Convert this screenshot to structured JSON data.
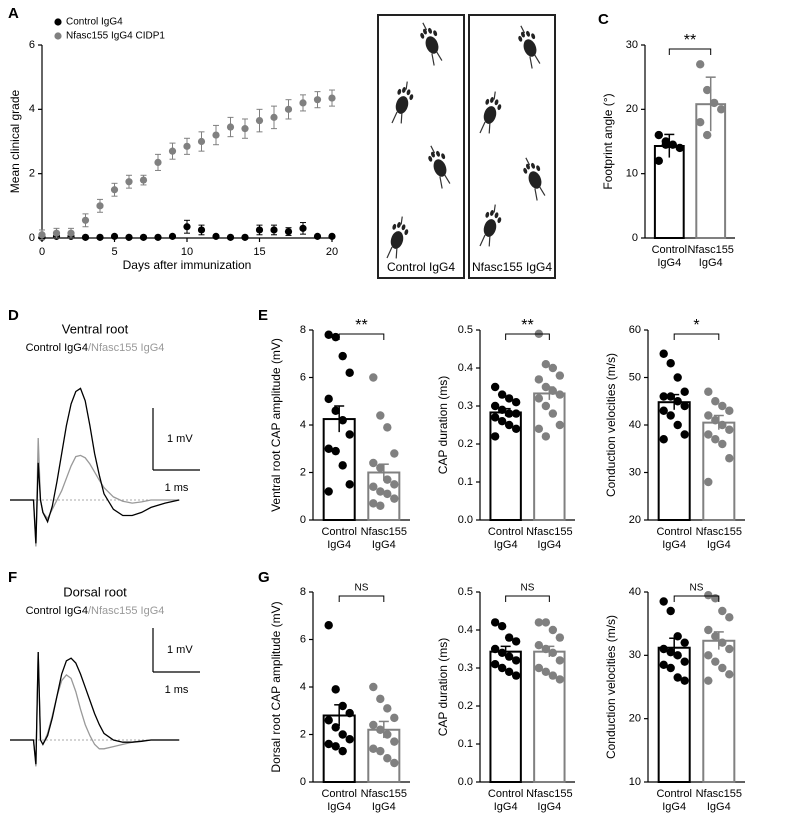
{
  "chart_data": [
    {
      "panel": "A",
      "type": "errorbar",
      "xlabel": "Days after immunization",
      "ylabel": "Mean clinical grade",
      "x": [
        0,
        1,
        2,
        3,
        4,
        5,
        6,
        7,
        8,
        9,
        10,
        11,
        12,
        13,
        14,
        15,
        16,
        17,
        18,
        19,
        20
      ],
      "series": [
        {
          "name": "Control IgG4",
          "color": "#000000",
          "values": [
            0.02,
            0.05,
            0.05,
            0.02,
            0.02,
            0.05,
            0.02,
            0.02,
            0.02,
            0.05,
            0.35,
            0.25,
            0.05,
            0.02,
            0.02,
            0.25,
            0.25,
            0.2,
            0.3,
            0.05,
            0.05
          ],
          "errors": [
            0,
            0.05,
            0.05,
            0,
            0,
            0.05,
            0,
            0,
            0,
            0.05,
            0.2,
            0.15,
            0.05,
            0,
            0,
            0.15,
            0.15,
            0.12,
            0.18,
            0.05,
            0.05
          ]
        },
        {
          "name": "Nfasc155 IgG4 CIDP1",
          "color": "#808080",
          "values": [
            0.1,
            0.15,
            0.15,
            0.55,
            1.0,
            1.5,
            1.75,
            1.8,
            2.35,
            2.7,
            2.85,
            3.0,
            3.2,
            3.45,
            3.4,
            3.65,
            3.75,
            4.0,
            4.2,
            4.3,
            4.35
          ],
          "errors": [
            0.15,
            0.15,
            0.15,
            0.2,
            0.2,
            0.2,
            0.2,
            0.15,
            0.25,
            0.25,
            0.25,
            0.3,
            0.3,
            0.3,
            0.3,
            0.35,
            0.35,
            0.3,
            0.25,
            0.25,
            0.25
          ]
        }
      ],
      "xlim": [
        0,
        20
      ],
      "xticks": [
        0,
        5,
        10,
        15,
        20
      ],
      "ylim": [
        0,
        6
      ],
      "yticks": [
        0,
        2,
        4,
        6
      ]
    },
    {
      "panel": "B",
      "type": "image",
      "labels": [
        "Control IgG4",
        "Nfasc155 IgG4"
      ]
    },
    {
      "panel": "C",
      "type": "bardot",
      "ylabel": "Footprint angle (°)",
      "categories": [
        [
          "Control",
          "IgG4"
        ],
        [
          "Nfasc155",
          "IgG4"
        ]
      ],
      "colors": [
        "#000000",
        "#808080"
      ],
      "values": [
        14.3,
        20.8
      ],
      "errors": [
        1.8,
        4.2
      ],
      "points": [
        [
          16,
          14.5,
          14.5,
          14,
          12,
          15
        ],
        [
          27,
          23,
          21,
          20,
          18,
          16
        ]
      ],
      "significance": "**",
      "ylim": [
        0,
        30
      ],
      "yticks": [
        0,
        10,
        20,
        30
      ]
    },
    {
      "panel": "D",
      "type": "trace",
      "title": "Ventral root",
      "separator": "/",
      "x": [
        0,
        0.4,
        0.5,
        0.55,
        0.6,
        0.65,
        0.7,
        0.8,
        0.9,
        1.0,
        1.1,
        1.2,
        1.3,
        1.4,
        1.5,
        1.6,
        1.7,
        1.8,
        1.9,
        2.0,
        2.2,
        2.4,
        2.6,
        2.8,
        3.0,
        3.3,
        3.6
      ],
      "series": [
        {
          "name": "Control IgG4",
          "color": "#000000",
          "values": [
            0,
            0,
            0,
            -0.7,
            0.6,
            0,
            -0.2,
            -0.35,
            -0.1,
            0.3,
            0.75,
            1.2,
            1.55,
            1.75,
            1.8,
            1.6,
            1.2,
            0.75,
            0.4,
            0.1,
            -0.15,
            -0.25,
            -0.25,
            -0.2,
            -0.12,
            -0.05,
            0
          ]
        },
        {
          "name": "Nfasc155 IgG4",
          "color": "#999999",
          "values": [
            0,
            0,
            0,
            -0.75,
            1.0,
            0,
            -0.2,
            -0.3,
            -0.15,
            0.0,
            0.15,
            0.35,
            0.55,
            0.7,
            0.72,
            0.68,
            0.58,
            0.45,
            0.32,
            0.2,
            0.05,
            -0.02,
            -0.05,
            -0.03,
            0,
            0,
            0
          ]
        }
      ],
      "scale_bar": {
        "y_value": 1,
        "y_label": "1 mV",
        "x_value": 1,
        "x_label": "1 ms"
      }
    },
    {
      "panel": "E",
      "type": "bardot",
      "ylabel": "Ventral root CAP amplitude (mV)",
      "categories": [
        [
          "Control",
          "IgG4"
        ],
        [
          "Nfasc155",
          "IgG4"
        ]
      ],
      "colors": [
        "#000000",
        "#808080"
      ],
      "values": [
        4.25,
        2.0
      ],
      "errors": [
        0.55,
        0.35
      ],
      "points": [
        [
          7.8,
          7.7,
          6.9,
          6.2,
          5.1,
          4.6,
          4.2,
          3.6,
          3.0,
          2.9,
          2.3,
          1.5,
          1.2
        ],
        [
          6.0,
          4.4,
          3.9,
          2.8,
          2.4,
          2.2,
          1.7,
          1.5,
          1.4,
          1.2,
          1.1,
          0.9,
          0.7,
          0.6
        ]
      ],
      "significance": "**",
      "ylim": [
        0,
        8
      ],
      "yticks": [
        0,
        2,
        4,
        6,
        8
      ]
    },
    {
      "type": "bardot",
      "ylabel": "CAP duration (ms)",
      "categories": [
        [
          "Control",
          "IgG4"
        ],
        [
          "Nfasc155",
          "IgG4"
        ]
      ],
      "colors": [
        "#000000",
        "#808080"
      ],
      "values": [
        0.283,
        0.333
      ],
      "errors": [
        0.01,
        0.017
      ],
      "points": [
        [
          0.35,
          0.33,
          0.32,
          0.31,
          0.3,
          0.29,
          0.28,
          0.28,
          0.27,
          0.26,
          0.25,
          0.24,
          0.22
        ],
        [
          0.49,
          0.41,
          0.4,
          0.38,
          0.37,
          0.35,
          0.34,
          0.33,
          0.32,
          0.3,
          0.28,
          0.25,
          0.24,
          0.22
        ]
      ],
      "significance": "**",
      "ylim": [
        0,
        0.5
      ],
      "yticks": [
        {
          "value": 0,
          "label": "0.0"
        },
        0.1,
        0.2,
        0.3,
        0.4,
        0.5
      ]
    },
    {
      "type": "bardot",
      "ylabel": "Conduction velocities (m/s)",
      "categories": [
        [
          "Control",
          "IgG4"
        ],
        [
          "Nfasc155",
          "IgG4"
        ]
      ],
      "colors": [
        "#000000",
        "#808080"
      ],
      "values": [
        44.8,
        40.5
      ],
      "errors": [
        1.6,
        1.5
      ],
      "points": [
        [
          55,
          53,
          50,
          47,
          46,
          46,
          45,
          44,
          43,
          42,
          40,
          38,
          37
        ],
        [
          47,
          45,
          44,
          43,
          42,
          41,
          40,
          39,
          38,
          37,
          36,
          33,
          28
        ]
      ],
      "significance": "*",
      "ylim": [
        20,
        60
      ],
      "yticks": [
        20,
        30,
        40,
        50,
        60
      ]
    },
    {
      "panel": "F",
      "type": "trace",
      "title": "Dorsal root",
      "separator": "/",
      "x": [
        0,
        0.4,
        0.5,
        0.55,
        0.6,
        0.65,
        0.7,
        0.8,
        0.9,
        1.0,
        1.1,
        1.2,
        1.3,
        1.4,
        1.5,
        1.6,
        1.7,
        1.8,
        1.9,
        2.0,
        2.2,
        2.4,
        2.6,
        2.8,
        3.0,
        3.3,
        3.6
      ],
      "series": [
        {
          "name": "Control IgG4",
          "color": "#000000",
          "values": [
            0,
            0,
            0,
            -0.55,
            2.0,
            0,
            -0.1,
            0.1,
            0.5,
            1.0,
            1.5,
            1.8,
            1.86,
            1.75,
            1.5,
            1.2,
            0.9,
            0.6,
            0.35,
            0.15,
            0,
            -0.05,
            -0.05,
            -0.03,
            0,
            0,
            0
          ]
        },
        {
          "name": "Nfasc155 IgG4",
          "color": "#999999",
          "values": [
            0,
            0,
            0,
            -0.6,
            2.0,
            0,
            -0.1,
            0.15,
            0.55,
            1.0,
            1.35,
            1.48,
            1.4,
            1.1,
            0.7,
            0.35,
            0.1,
            -0.1,
            -0.2,
            -0.2,
            -0.15,
            -0.1,
            -0.05,
            -0.02,
            0,
            0,
            0
          ]
        }
      ],
      "scale_bar": {
        "y_value": 1,
        "y_label": "1 mV",
        "x_value": 1,
        "x_label": "1 ms"
      }
    },
    {
      "panel": "G",
      "type": "bardot",
      "ylabel": "Dorsal root CAP amplitude (mV)",
      "categories": [
        [
          "Control",
          "IgG4"
        ],
        [
          "Nfasc155",
          "IgG4"
        ]
      ],
      "colors": [
        "#000000",
        "#808080"
      ],
      "values": [
        2.8,
        2.2
      ],
      "errors": [
        0.45,
        0.35
      ],
      "points": [
        [
          6.6,
          3.9,
          3.2,
          2.9,
          2.6,
          2.3,
          2.0,
          1.8,
          1.6,
          1.5,
          1.3
        ],
        [
          4.0,
          3.5,
          3.1,
          2.7,
          2.4,
          2.2,
          2.0,
          1.7,
          1.4,
          1.3,
          1.0,
          0.8
        ]
      ],
      "significance": "NS",
      "ylim": [
        0,
        8
      ],
      "yticks": [
        0,
        2,
        4,
        6,
        8
      ]
    },
    {
      "type": "bardot",
      "ylabel": "CAP duration (ms)",
      "categories": [
        [
          "Control",
          "IgG4"
        ],
        [
          "Nfasc155",
          "IgG4"
        ]
      ],
      "colors": [
        "#000000",
        "#808080"
      ],
      "values": [
        0.343,
        0.343
      ],
      "errors": [
        0.014,
        0.014
      ],
      "points": [
        [
          0.42,
          0.41,
          0.38,
          0.37,
          0.35,
          0.34,
          0.33,
          0.32,
          0.31,
          0.3,
          0.29,
          0.28
        ],
        [
          0.42,
          0.42,
          0.4,
          0.38,
          0.36,
          0.35,
          0.34,
          0.32,
          0.3,
          0.29,
          0.28,
          0.27
        ]
      ],
      "significance": "NS",
      "ylim": [
        0,
        0.5
      ],
      "yticks": [
        {
          "value": 0,
          "label": "0.0"
        },
        0.1,
        0.2,
        0.3,
        0.4,
        0.5
      ]
    },
    {
      "type": "bardot",
      "ylabel": "Conduction velocities (m/s)",
      "categories": [
        [
          "Control",
          "IgG4"
        ],
        [
          "Nfasc155",
          "IgG4"
        ]
      ],
      "colors": [
        "#000000",
        "#808080"
      ],
      "values": [
        31.2,
        32.3
      ],
      "errors": [
        1.5,
        1.4
      ],
      "points": [
        [
          38.5,
          37,
          33,
          32,
          31,
          30.5,
          30,
          29,
          28.5,
          28,
          26.5,
          26
        ],
        [
          39.5,
          39,
          37,
          36,
          34,
          33,
          32,
          31,
          30,
          29,
          28,
          27,
          26
        ]
      ],
      "significance": "NS",
      "ylim": [
        10,
        40
      ],
      "yticks": [
        10,
        20,
        30,
        40
      ]
    }
  ]
}
